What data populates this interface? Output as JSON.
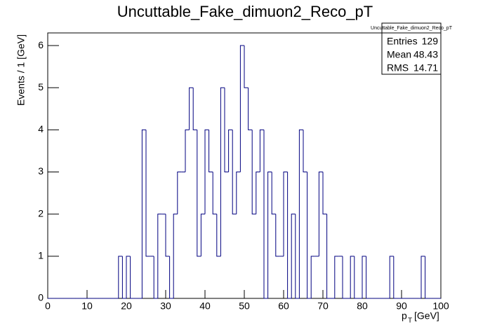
{
  "chart_data": {
    "type": "histogram",
    "title": "Uncuttable_Fake_dimuon2_Reco_pT",
    "y_label": "Events / 1 [GeV]",
    "x_label": {
      "base": "p",
      "sub": "T",
      "unit": "[GeV]"
    },
    "color": "#000080",
    "bins": [
      0,
      1,
      2,
      3,
      4,
      5,
      6,
      7,
      8,
      9,
      10,
      11,
      12,
      13,
      14,
      15,
      16,
      17,
      18,
      19,
      20,
      21,
      22,
      23,
      24,
      25,
      26,
      27,
      28,
      29,
      30,
      31,
      32,
      33,
      34,
      35,
      36,
      37,
      38,
      39,
      40,
      41,
      42,
      43,
      44,
      45,
      46,
      47,
      48,
      49,
      50,
      51,
      52,
      53,
      54,
      55,
      56,
      57,
      58,
      59,
      60,
      61,
      62,
      63,
      64,
      65,
      66,
      67,
      68,
      69,
      70,
      71,
      72,
      73,
      74,
      75,
      76,
      77,
      78,
      79,
      80,
      81,
      82,
      83,
      84,
      85,
      86,
      87,
      88,
      89,
      90,
      91,
      92,
      93,
      94,
      95,
      96,
      97,
      98,
      99,
      100
    ],
    "counts": [
      0,
      0,
      0,
      0,
      0,
      0,
      0,
      0,
      0,
      0,
      0,
      0,
      0,
      0,
      0,
      0,
      0,
      0,
      1,
      0,
      1,
      0,
      0,
      0,
      4,
      1,
      1,
      0,
      2,
      2,
      1,
      0,
      2,
      3,
      3,
      4,
      5,
      4,
      1,
      2,
      4,
      3,
      2,
      1,
      5,
      3,
      4,
      2,
      3,
      6,
      5,
      4,
      2,
      3,
      4,
      0,
      3,
      2,
      1,
      1,
      3,
      0,
      2,
      0,
      4,
      3,
      0,
      1,
      1,
      3,
      2,
      0,
      0,
      1,
      1,
      0,
      0,
      1,
      0,
      0,
      1,
      0,
      0,
      0,
      0,
      0,
      0,
      1,
      0,
      0,
      0,
      0,
      0,
      0,
      0,
      1,
      0,
      0,
      0,
      0
    ],
    "xlim": [
      0,
      100
    ],
    "xticks": [
      0,
      10,
      20,
      30,
      40,
      50,
      60,
      70,
      80,
      90,
      100
    ],
    "ylim": [
      0,
      6.3
    ],
    "yticks": [
      0,
      1,
      2,
      3,
      4,
      5,
      6
    ],
    "stats": {
      "title": "Uncuttable_Fake_dimuon2_Reco_pT",
      "rows": [
        {
          "label": "Entries",
          "value": 129
        },
        {
          "label": "Mean",
          "value": 48.43
        },
        {
          "label": "RMS",
          "value": 14.71
        }
      ]
    }
  }
}
